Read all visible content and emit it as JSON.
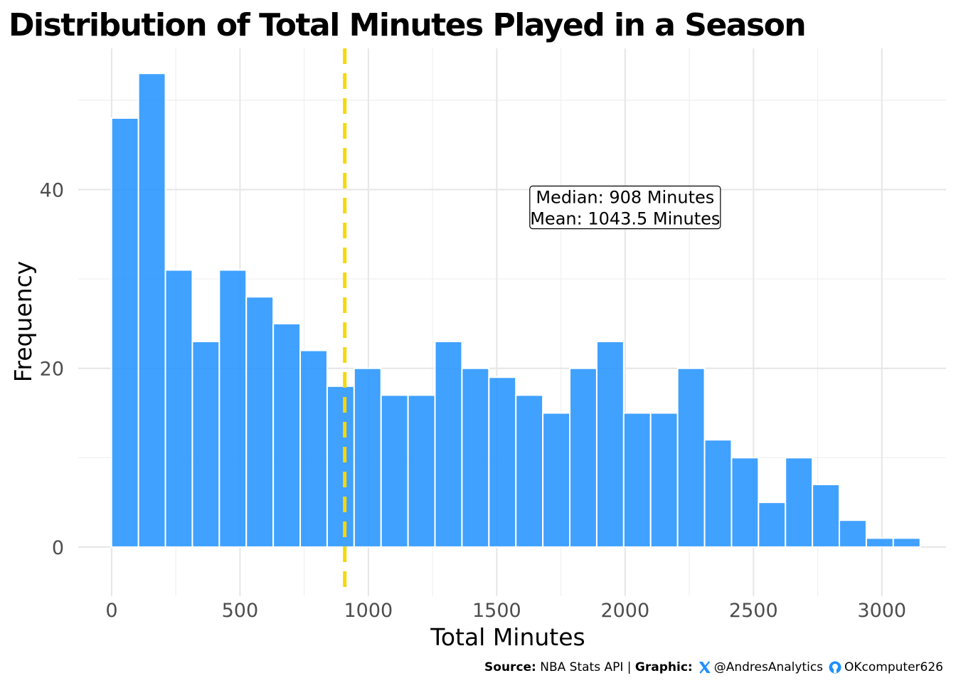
{
  "chart_data": {
    "type": "bar",
    "title": "Distribution of Total Minutes Played in a Season",
    "xlabel": "Total Minutes",
    "ylabel": "Frequency",
    "xlim": [
      -130,
      3250
    ],
    "ylim": [
      -5.5,
      55.8
    ],
    "x_ticks": [
      0,
      500,
      1000,
      1500,
      2000,
      2500,
      3000
    ],
    "x_tick_labels": [
      "0",
      "500",
      "1000",
      "1500",
      "2000",
      "2500",
      "3000"
    ],
    "y_ticks": [
      0,
      20,
      40
    ],
    "y_tick_labels": [
      "0",
      "20",
      "40"
    ],
    "bin_width": 105,
    "bin_centers": [
      52,
      157,
      262,
      367,
      472,
      577,
      682,
      787,
      892,
      997,
      1102,
      1207,
      1312,
      1417,
      1522,
      1627,
      1732,
      1837,
      1942,
      2047,
      2152,
      2257,
      2362,
      2467,
      2572,
      2677,
      2782,
      2887,
      2992,
      3097
    ],
    "values": [
      48,
      53,
      31,
      23,
      31,
      28,
      25,
      22,
      18,
      20,
      17,
      17,
      23,
      20,
      19,
      17,
      15,
      20,
      23,
      15,
      15,
      20,
      12,
      10,
      5,
      10,
      7,
      3,
      1,
      1
    ],
    "grid": true,
    "bar_color": "#1e90ff",
    "median_line": {
      "x": 908,
      "color": "#f5d90a"
    },
    "annotation": {
      "lines": [
        "Median: 908 Minutes",
        "Mean: 1043.5 Minutes"
      ],
      "x": 2000,
      "y": 40
    }
  },
  "caption": {
    "source_label": "Source:",
    "source_value": " NBA Stats API | ",
    "graphic_label": "Graphic:",
    "twitter_handle": "@AndresAnalytics",
    "github_handle": "OKcomputer626",
    "twitter_icon": "x-logo-icon",
    "github_icon": "github-icon",
    "icon_color": "#1e90ff"
  }
}
